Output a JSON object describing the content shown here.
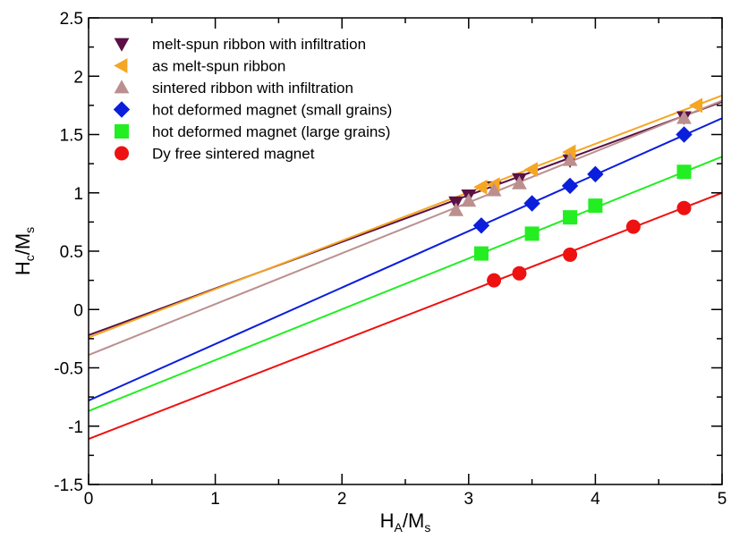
{
  "chart_data": {
    "type": "scatter",
    "xlabel": {
      "main": "H",
      "sub": "A",
      "sep": "/",
      "main2": "M",
      "sub2": "s"
    },
    "ylabel": {
      "main": "H",
      "sub": "c",
      "sep": "/",
      "main2": "M",
      "sub2": "s"
    },
    "xlim": [
      0,
      5
    ],
    "ylim": [
      -1.5,
      2.5
    ],
    "xticks": [
      0,
      1,
      2,
      3,
      4,
      5
    ],
    "yticks": [
      -1.5,
      -1,
      -0.5,
      0,
      0.5,
      1,
      1.5,
      2,
      2.5
    ],
    "xtick_labels": [
      "0",
      "1",
      "2",
      "3",
      "4",
      "5"
    ],
    "ytick_labels": [
      "-1.5",
      "-1",
      "-0.5",
      "0",
      "0.5",
      "1",
      "1.5",
      "2",
      "2.5"
    ],
    "grid": false,
    "legend_position": "top-left",
    "series": [
      {
        "name": "melt-spun ribbon with infiltration",
        "marker": "triangle-down",
        "color": "#5a1045",
        "x": [
          2.9,
          3.0,
          3.2,
          3.4,
          3.8,
          4.7
        ],
        "y": [
          0.92,
          0.98,
          1.05,
          1.12,
          1.28,
          1.65
        ],
        "fit": {
          "intercept": -0.22,
          "slope": 0.4
        }
      },
      {
        "name": "as melt-spun ribbon",
        "marker": "triangle-left",
        "color": "#f5a623",
        "x": [
          3.1,
          3.2,
          3.5,
          3.8,
          4.8
        ],
        "y": [
          1.05,
          1.07,
          1.2,
          1.35,
          1.75
        ],
        "fit": {
          "intercept": -0.24,
          "slope": 0.415
        }
      },
      {
        "name": "sintered ribbon with infiltration",
        "marker": "triangle-up",
        "color": "#bc8f8f",
        "x": [
          2.9,
          3.0,
          3.2,
          3.4,
          3.8,
          4.7
        ],
        "y": [
          0.85,
          0.93,
          1.02,
          1.08,
          1.28,
          1.64
        ],
        "fit": {
          "intercept": -0.39,
          "slope": 0.436
        }
      },
      {
        "name": "hot deformed magnet (small grains)",
        "marker": "diamond",
        "color": "#0a1edc",
        "x": [
          3.1,
          3.5,
          3.8,
          4.0,
          4.7
        ],
        "y": [
          0.72,
          0.91,
          1.06,
          1.16,
          1.5
        ],
        "fit": {
          "intercept": -0.78,
          "slope": 0.484
        }
      },
      {
        "name": "hot deformed magnet (large grains)",
        "marker": "square",
        "color": "#22ee22",
        "x": [
          3.1,
          3.5,
          3.8,
          4.0,
          4.7
        ],
        "y": [
          0.48,
          0.65,
          0.79,
          0.89,
          1.18
        ],
        "fit": {
          "intercept": -0.87,
          "slope": 0.436
        }
      },
      {
        "name": "Dy free sintered magnet",
        "marker": "circle",
        "color": "#ee1111",
        "x": [
          3.2,
          3.4,
          3.8,
          4.3,
          4.7
        ],
        "y": [
          0.25,
          0.31,
          0.47,
          0.71,
          0.87
        ],
        "fit": {
          "intercept": -1.11,
          "slope": 0.422
        }
      }
    ]
  }
}
